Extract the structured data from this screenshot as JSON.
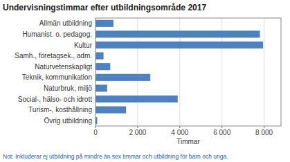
{
  "chart_data": {
    "type": "bar",
    "orientation": "horizontal",
    "title": "Undervisningstimmar efter utbildningsområde 2017",
    "categories": [
      "Övrig utbildning",
      "Turism-, kosthållning",
      "Social-, hälso- och idrott",
      "Naturbruk, miljö",
      "Teknik, kommunikation",
      "Naturvetenskapligt",
      "Samh., företagsek., adm.",
      "Kultur",
      "Humanist. o. pedagog.",
      "Allmän utbildning"
    ],
    "values": [
      80,
      1450,
      3900,
      550,
      2600,
      700,
      380,
      7950,
      7800,
      850
    ],
    "color": "#4E81BD",
    "xlabel": "Timmar",
    "xlim": [
      0,
      8800
    ],
    "xticks": [
      0,
      {
        "value": 2000,
        "label": "2 000"
      },
      {
        "value": 4000,
        "label": "4 000"
      },
      {
        "value": 6000,
        "label": "6 000"
      },
      {
        "value": 8000,
        "label": "8 000"
      }
    ],
    "grid": true,
    "annotations": [
      "Not: Inkluderar ej utbildning på mindre än sex timmar och utbildning för barn och unga."
    ]
  }
}
